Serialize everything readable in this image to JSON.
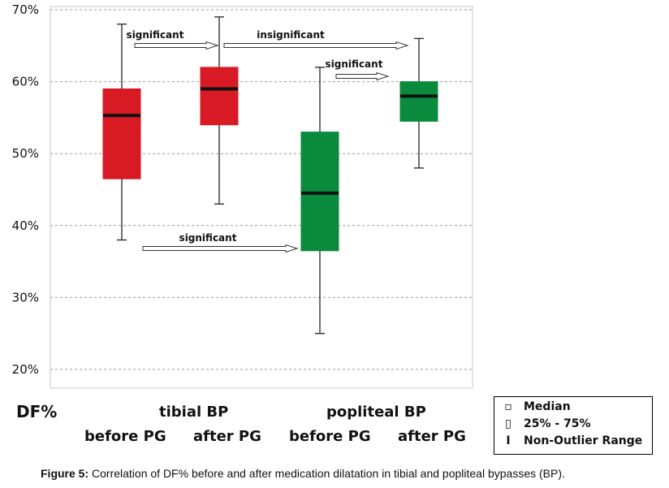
{
  "chart_data": {
    "type": "box",
    "ylim": [
      18,
      70
    ],
    "yticks": [
      20,
      30,
      40,
      50,
      60,
      70
    ],
    "ytick_labels": [
      "20%",
      "30%",
      "40%",
      "50%",
      "60%",
      "70%"
    ],
    "grid": true,
    "ylabel": "DF%",
    "groups": [
      "tibial BP",
      "popliteal BP"
    ],
    "categories": [
      "before PG",
      "after PG",
      "before PG",
      "after PG"
    ],
    "boxes": [
      {
        "group": "tibial BP",
        "category": "before PG",
        "whisker_low": 38,
        "q1": 46.5,
        "median": 55.3,
        "q3": 59,
        "whisker_high": 68,
        "color": "#d71a24"
      },
      {
        "group": "tibial BP",
        "category": "after PG",
        "whisker_low": 43,
        "q1": 54,
        "median": 59,
        "q3": 62,
        "whisker_high": 69,
        "color": "#d71a24"
      },
      {
        "group": "popliteal BP",
        "category": "before PG",
        "whisker_low": 25,
        "q1": 36.5,
        "median": 44.5,
        "q3": 53,
        "whisker_high": 62,
        "color": "#0a8a3c"
      },
      {
        "group": "popliteal BP",
        "category": "after PG",
        "whisker_low": 48,
        "q1": 54.5,
        "median": 58,
        "q3": 60,
        "whisker_high": 66,
        "color": "#0a8a3c"
      }
    ],
    "annotations": [
      {
        "text": "significant",
        "from": 0,
        "to": 1
      },
      {
        "text": "insignificant",
        "from": 1,
        "to": 3
      },
      {
        "text": "significant",
        "from": 2,
        "to": 3
      },
      {
        "text": "significant",
        "from": 0,
        "to": 2
      }
    ],
    "legend": {
      "placement": "bottom-right",
      "items": [
        {
          "symbol": "▫",
          "label": "Median"
        },
        {
          "symbol": "▯",
          "label": "25% - 75%"
        },
        {
          "symbol": "I",
          "label": "Non-Outlier Range"
        }
      ]
    }
  },
  "caption": {
    "prefix": "Figure 5:",
    "text": " Correlation of DF% before and after medication dilatation in tibial and popliteal bypasses (BP)."
  }
}
